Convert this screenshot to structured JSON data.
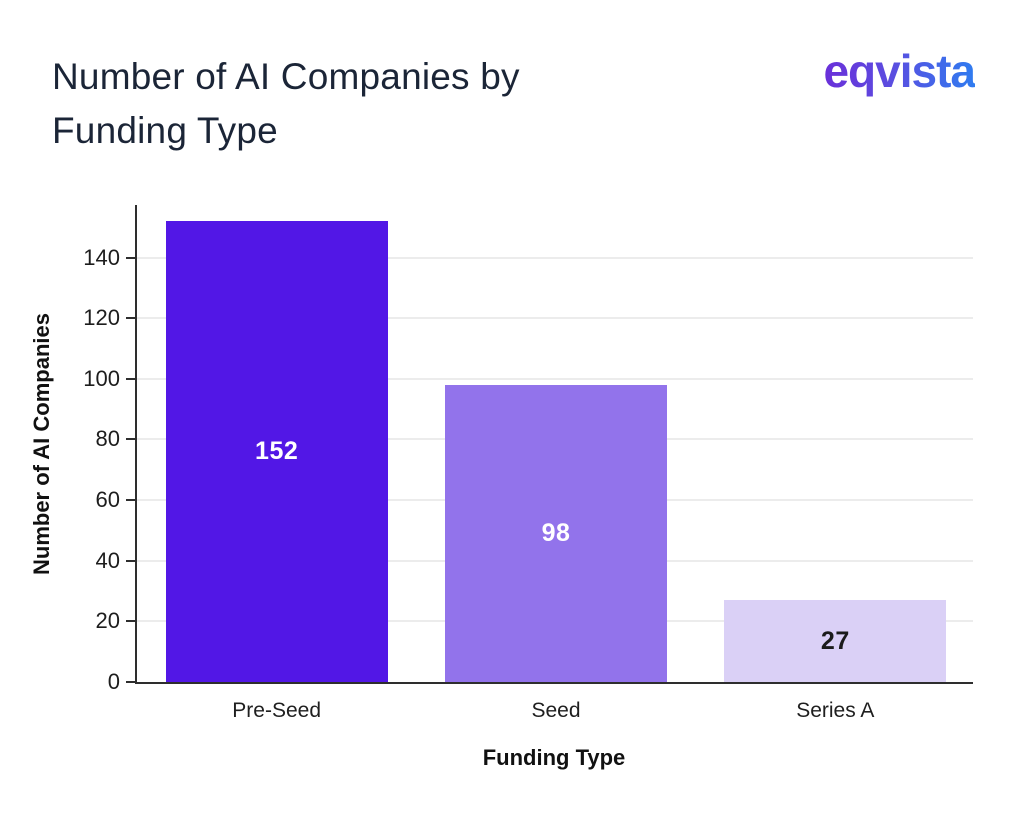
{
  "header": {
    "logo_text": "eqvista"
  },
  "chart_data": {
    "type": "bar",
    "title": "Number of AI Companies by Funding Type",
    "xlabel": "Funding Type",
    "ylabel": "Number of AI Companies",
    "categories": [
      "Pre-Seed",
      "Seed",
      "Series A"
    ],
    "values": [
      152,
      98,
      27
    ],
    "bar_colors": [
      "#5217e6",
      "#9273eb",
      "#dad0f6"
    ],
    "value_label_colors": [
      "#ffffff",
      "#ffffff",
      "#1b1b1b"
    ],
    "yticks": [
      0,
      20,
      40,
      60,
      80,
      100,
      120,
      140
    ],
    "ylim": [
      0,
      158
    ],
    "grid": true,
    "legend": false
  },
  "style": {
    "axis_color": "#2e2e2e",
    "grid_color": "#ececec",
    "title_color": "#1b2537",
    "logo_gradient_start": "#6a2fd9",
    "logo_gradient_end": "#2f7cf0",
    "background": "#ffffff"
  }
}
